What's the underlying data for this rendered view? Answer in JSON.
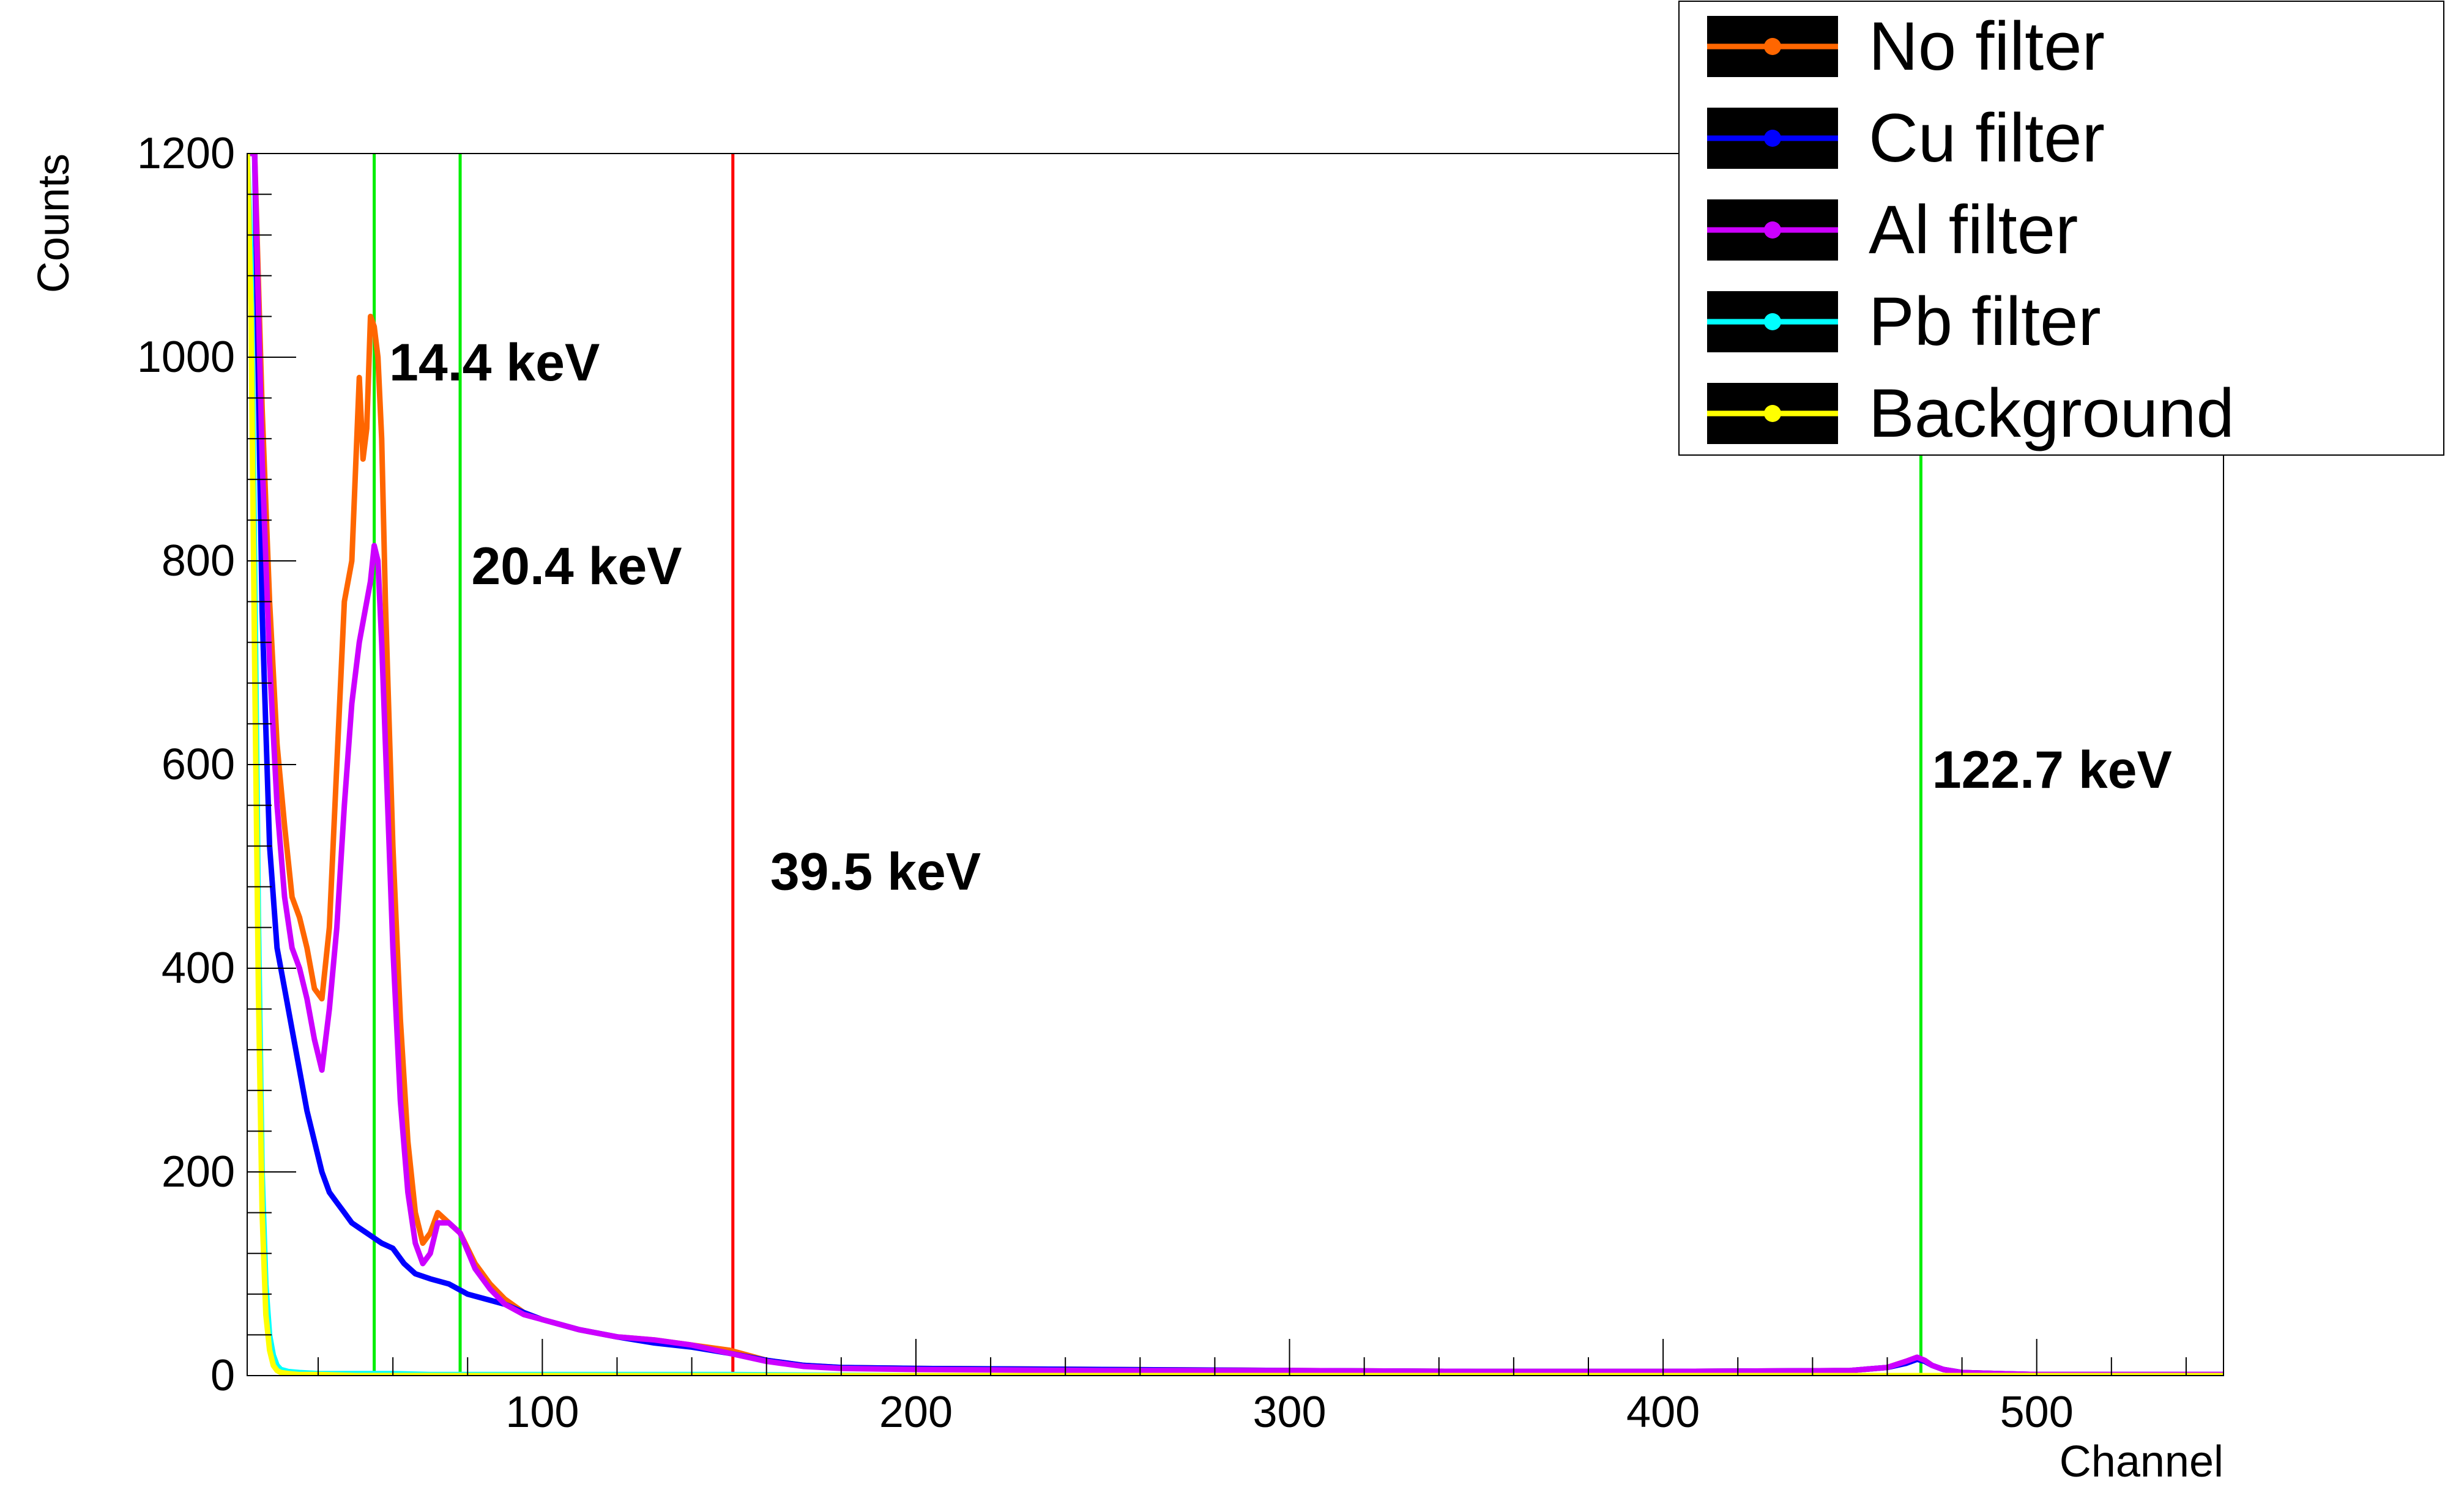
{
  "chart_data": {
    "type": "line",
    "title": "",
    "xlabel": "Channel",
    "ylabel": "Counts",
    "xlim": [
      21,
      550
    ],
    "ylim": [
      0,
      1200
    ],
    "x_ticks": [
      100,
      200,
      300,
      400,
      500
    ],
    "y_ticks": [
      0,
      200,
      400,
      600,
      800,
      1000,
      1200
    ],
    "grid": false,
    "legend_position": "top-right",
    "series": [
      {
        "name": "No filter",
        "color": "#ff6600",
        "x": [
          21,
          23,
          25,
          27,
          29,
          31,
          33,
          35,
          37,
          39,
          41,
          43,
          45,
          47,
          49,
          51,
          52,
          53,
          54,
          55,
          56,
          57,
          58,
          60,
          62,
          64,
          66,
          68,
          70,
          72,
          75,
          78,
          82,
          86,
          90,
          95,
          100,
          110,
          120,
          130,
          140,
          150,
          160,
          170,
          180,
          200,
          250,
          300,
          350,
          400,
          450,
          460,
          465,
          468,
          470,
          472,
          475,
          480,
          490,
          500,
          550
        ],
        "y": [
          1200,
          1200,
          950,
          760,
          620,
          540,
          470,
          450,
          420,
          380,
          370,
          440,
          600,
          760,
          800,
          980,
          900,
          930,
          1040,
          1030,
          1000,
          920,
          760,
          520,
          350,
          230,
          160,
          130,
          140,
          160,
          150,
          140,
          110,
          90,
          75,
          62,
          55,
          45,
          38,
          35,
          30,
          25,
          15,
          10,
          8,
          7,
          6,
          5,
          4,
          4,
          5,
          8,
          14,
          18,
          15,
          10,
          6,
          3,
          2,
          1,
          1
        ]
      },
      {
        "name": "Cu filter",
        "color": "#0000ff",
        "x": [
          21,
          23,
          25,
          27,
          29,
          31,
          33,
          35,
          37,
          39,
          41,
          43,
          45,
          47,
          49,
          51,
          53,
          55,
          57,
          60,
          63,
          66,
          70,
          75,
          80,
          85,
          90,
          95,
          100,
          110,
          120,
          130,
          140,
          150,
          160,
          170,
          180,
          200,
          250,
          300,
          350,
          400,
          450,
          460,
          465,
          468,
          470,
          472,
          475,
          480,
          490,
          500,
          550
        ],
        "y": [
          1200,
          1200,
          750,
          520,
          420,
          380,
          340,
          300,
          260,
          230,
          200,
          180,
          170,
          160,
          150,
          145,
          140,
          135,
          130,
          125,
          110,
          100,
          95,
          90,
          80,
          75,
          70,
          62,
          55,
          45,
          38,
          32,
          28,
          22,
          15,
          10,
          8,
          7,
          6,
          5,
          4,
          4,
          5,
          8,
          12,
          16,
          14,
          10,
          6,
          3,
          2,
          1,
          1
        ]
      },
      {
        "name": "Al filter",
        "color": "#cc00ff",
        "x": [
          21,
          23,
          25,
          27,
          29,
          31,
          33,
          35,
          37,
          39,
          41,
          43,
          45,
          47,
          49,
          51,
          53,
          54,
          55,
          56,
          57,
          58,
          60,
          62,
          64,
          66,
          68,
          70,
          72,
          75,
          78,
          82,
          86,
          90,
          95,
          100,
          110,
          120,
          130,
          140,
          150,
          160,
          170,
          180,
          200,
          250,
          300,
          350,
          400,
          450,
          460,
          465,
          468,
          470,
          472,
          475,
          480,
          490,
          500,
          550
        ],
        "y": [
          1200,
          1200,
          900,
          700,
          560,
          470,
          420,
          400,
          370,
          330,
          300,
          360,
          440,
          560,
          660,
          720,
          760,
          780,
          815,
          800,
          720,
          620,
          420,
          270,
          180,
          130,
          110,
          120,
          150,
          150,
          140,
          105,
          85,
          70,
          60,
          55,
          45,
          38,
          35,
          30,
          22,
          14,
          9,
          7,
          6,
          5,
          5,
          4,
          4,
          5,
          8,
          14,
          18,
          15,
          10,
          6,
          3,
          2,
          1,
          1
        ]
      },
      {
        "name": "Pb filter",
        "color": "#00ffff",
        "x": [
          21,
          22,
          23,
          24,
          25,
          26,
          27,
          28,
          29,
          30,
          32,
          35,
          40,
          50,
          60,
          70,
          100,
          150,
          200,
          300,
          400,
          500,
          550
        ],
        "y": [
          1200,
          1100,
          800,
          450,
          200,
          90,
          40,
          20,
          10,
          6,
          4,
          3,
          2,
          2,
          2,
          1,
          1,
          1,
          0,
          0,
          0,
          0,
          0
        ]
      },
      {
        "name": "Background",
        "color": "#ffff00",
        "x": [
          21,
          22,
          23,
          24,
          25,
          26,
          27,
          28,
          29,
          30,
          32,
          35,
          40,
          50,
          100,
          200,
          300,
          400,
          500,
          550
        ],
        "y": [
          1200,
          1050,
          700,
          380,
          160,
          60,
          25,
          10,
          5,
          3,
          2,
          1,
          1,
          0,
          0,
          0,
          0,
          0,
          0,
          0
        ]
      }
    ],
    "vertical_lines": [
      {
        "x": 55,
        "color": "#00ee00"
      },
      {
        "x": 78,
        "color": "#00ee00"
      },
      {
        "x": 151,
        "color": "#ff0000"
      },
      {
        "x": 469,
        "color": "#00ee00"
      }
    ],
    "annotations": [
      {
        "text": "14.4 keV",
        "x": 59,
        "y": 1000
      },
      {
        "text": "20.4 keV",
        "x": 81,
        "y": 800
      },
      {
        "text": "39.5 keV",
        "x": 161,
        "y": 500
      },
      {
        "text": "122.7 keV",
        "x": 472,
        "y": 600
      }
    ]
  }
}
